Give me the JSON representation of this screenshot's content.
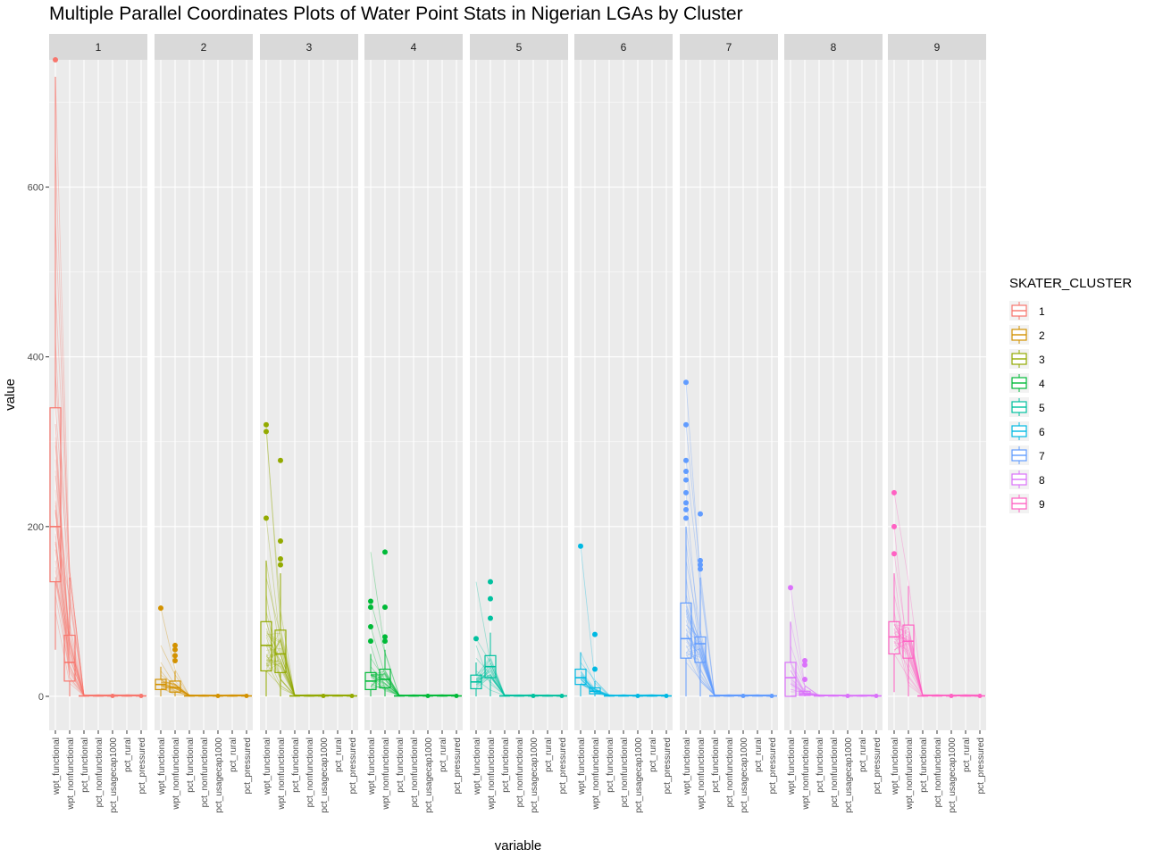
{
  "chart_data": {
    "type": "box",
    "subtype": "faceted boxplot with parallel coordinate lines",
    "title": "Multiple Parallel Coordinates Plots of Water Point Stats in Nigerian LGAs by Cluster",
    "xlabel": "variable",
    "ylabel": "value",
    "ylim": [
      -40,
      750
    ],
    "y_ticks": [
      0,
      200,
      400,
      600
    ],
    "grid": true,
    "legend": {
      "title": "SKATER_CLUSTER",
      "placement": "right",
      "entries": [
        "1",
        "2",
        "3",
        "4",
        "5",
        "6",
        "7",
        "8",
        "9"
      ]
    },
    "categories": [
      "wpt_functional",
      "wpt_nonfunctional",
      "pct_functional",
      "pct_nonfunctional",
      "pct_usagecap1000",
      "pct_rural",
      "pct_pressured"
    ],
    "panels": [
      {
        "name": "1",
        "color": "#F8766D",
        "boxes": [
          {
            "variable": "wpt_functional",
            "q1": 135,
            "median": 200,
            "q3": 340,
            "whisker_low": 55,
            "whisker_high": 730,
            "outliers": [
              750
            ]
          },
          {
            "variable": "wpt_nonfunctional",
            "q1": 18,
            "median": 40,
            "q3": 72,
            "whisker_low": 0,
            "whisker_high": 140,
            "outliers": []
          }
        ],
        "line_peaks": [
          730,
          645,
          560,
          480,
          420,
          380,
          340,
          300,
          260,
          220,
          200,
          180,
          160,
          140,
          120,
          100
        ]
      },
      {
        "name": "2",
        "color": "#D39200",
        "boxes": [
          {
            "variable": "wpt_functional",
            "q1": 8,
            "median": 14,
            "q3": 20,
            "whisker_low": 0,
            "whisker_high": 35,
            "outliers": [
              104
            ]
          },
          {
            "variable": "wpt_nonfunctional",
            "q1": 5,
            "median": 10,
            "q3": 18,
            "whisker_low": 0,
            "whisker_high": 30,
            "outliers": [
              60,
              55,
              48,
              42
            ]
          }
        ],
        "line_peaks": [
          104,
          60,
          40,
          30,
          25,
          20,
          15,
          10
        ]
      },
      {
        "name": "3",
        "color": "#93AA00",
        "boxes": [
          {
            "variable": "wpt_functional",
            "q1": 30,
            "median": 60,
            "q3": 88,
            "whisker_low": 0,
            "whisker_high": 160,
            "outliers": [
              320,
              312,
              210
            ]
          },
          {
            "variable": "wpt_nonfunctional",
            "q1": 28,
            "median": 50,
            "q3": 78,
            "whisker_low": 0,
            "whisker_high": 145,
            "outliers": [
              278,
              183,
              162,
              155
            ]
          }
        ],
        "line_peaks": [
          320,
          312,
          210,
          160,
          140,
          120,
          100,
          90,
          80,
          70,
          60,
          50,
          40,
          30
        ]
      },
      {
        "name": "4",
        "color": "#00BA38",
        "boxes": [
          {
            "variable": "wpt_functional",
            "q1": 8,
            "median": 18,
            "q3": 28,
            "whisker_low": 0,
            "whisker_high": 50,
            "outliers": [
              112,
              105,
              82,
              65
            ]
          },
          {
            "variable": "wpt_nonfunctional",
            "q1": 10,
            "median": 20,
            "q3": 32,
            "whisker_low": 0,
            "whisker_high": 55,
            "outliers": [
              170,
              105,
              70,
              65
            ]
          }
        ],
        "line_peaks": [
          112,
          170,
          82,
          60,
          45,
          35,
          25,
          15
        ]
      },
      {
        "name": "5",
        "color": "#00C19F",
        "boxes": [
          {
            "variable": "wpt_functional",
            "q1": 9,
            "median": 17,
            "q3": 25,
            "whisker_low": 0,
            "whisker_high": 40,
            "outliers": [
              68
            ]
          },
          {
            "variable": "wpt_nonfunctional",
            "q1": 22,
            "median": 35,
            "q3": 48,
            "whisker_low": 0,
            "whisker_high": 75,
            "outliers": [
              135,
              115,
              92
            ]
          }
        ],
        "line_peaks": [
          68,
          135,
          60,
          45,
          30,
          20
        ]
      },
      {
        "name": "6",
        "color": "#00B9E3",
        "boxes": [
          {
            "variable": "wpt_functional",
            "q1": 14,
            "median": 22,
            "q3": 32,
            "whisker_low": 0,
            "whisker_high": 52,
            "outliers": [
              177
            ]
          },
          {
            "variable": "wpt_nonfunctional",
            "q1": 3,
            "median": 6,
            "q3": 10,
            "whisker_low": 0,
            "whisker_high": 18,
            "outliers": [
              73,
              32
            ]
          }
        ],
        "line_peaks": [
          177,
          52,
          40,
          30,
          20
        ]
      },
      {
        "name": "7",
        "color": "#619CFF",
        "boxes": [
          {
            "variable": "wpt_functional",
            "q1": 45,
            "median": 68,
            "q3": 110,
            "whisker_low": 0,
            "whisker_high": 200,
            "outliers": [
              370,
              320,
              278,
              265,
              255,
              240,
              228,
              220,
              210
            ]
          },
          {
            "variable": "wpt_nonfunctional",
            "q1": 40,
            "median": 62,
            "q3": 70,
            "whisker_low": 0,
            "whisker_high": 140,
            "outliers": [
              215,
              160,
              155,
              150
            ]
          }
        ],
        "line_peaks": [
          370,
          320,
          278,
          240,
          200,
          180,
          160,
          140,
          120,
          100,
          90,
          80,
          70,
          60,
          50,
          40
        ]
      },
      {
        "name": "8",
        "color": "#DB72FB",
        "boxes": [
          {
            "variable": "wpt_functional",
            "q1": 0,
            "median": 22,
            "q3": 40,
            "whisker_low": 0,
            "whisker_high": 88,
            "outliers": [
              128
            ]
          },
          {
            "variable": "wpt_nonfunctional",
            "q1": 1,
            "median": 3,
            "q3": 6,
            "whisker_low": 0,
            "whisker_high": 12,
            "outliers": [
              42,
              37,
              20
            ]
          }
        ],
        "line_peaks": [
          128,
          88,
          60,
          40,
          20
        ]
      },
      {
        "name": "9",
        "color": "#FF61C3",
        "boxes": [
          {
            "variable": "wpt_functional",
            "q1": 50,
            "median": 70,
            "q3": 88,
            "whisker_low": 5,
            "whisker_high": 145,
            "outliers": [
              240,
              200,
              168
            ]
          },
          {
            "variable": "wpt_nonfunctional",
            "q1": 45,
            "median": 65,
            "q3": 84,
            "whisker_low": 0,
            "whisker_high": 130,
            "outliers": []
          }
        ],
        "line_peaks": [
          240,
          200,
          168,
          145,
          120,
          100,
          80,
          65,
          50
        ]
      }
    ]
  }
}
